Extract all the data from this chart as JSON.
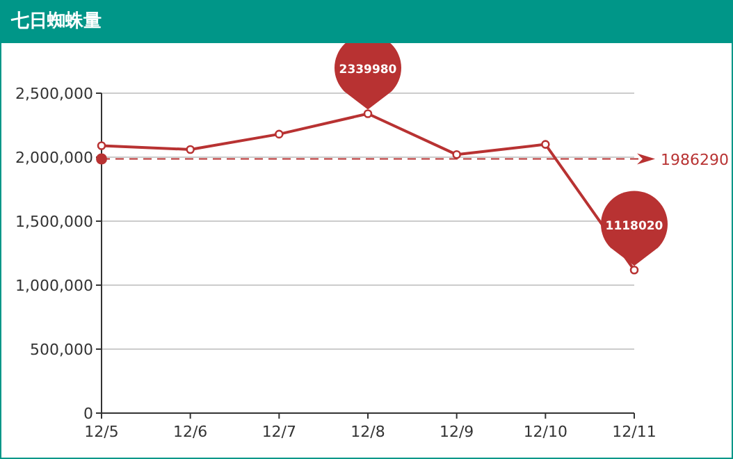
{
  "chart_data": {
    "type": "line",
    "title": "七日蜘蛛量",
    "categories": [
      "12/5",
      "12/6",
      "12/7",
      "12/8",
      "12/9",
      "12/10",
      "12/11"
    ],
    "series": [
      {
        "color": "#b83232",
        "values": [
          2090000,
          2060000,
          2180000,
          2339980,
          2020000,
          2100000,
          1118020
        ]
      }
    ],
    "ylim": [
      0,
      2500000
    ],
    "yticks": [
      0,
      {
        "value": 500000,
        "label": "500,000"
      },
      {
        "value": 1000000,
        "label": "1,000,000"
      },
      {
        "value": 1500000,
        "label": "1,500,000"
      },
      {
        "value": 2000000,
        "label": "2,000,000"
      },
      {
        "value": 2500000,
        "label": "2,500,000"
      }
    ],
    "grid": "y",
    "marker": "circle",
    "line_style": "solid",
    "annotations": [
      "2339980",
      "1118020"
    ],
    "ref_lines": [
      {
        "axis": "y",
        "value": 1986290,
        "label": "1986290",
        "color": "#b83232",
        "line_style": "dashed"
      }
    ]
  }
}
